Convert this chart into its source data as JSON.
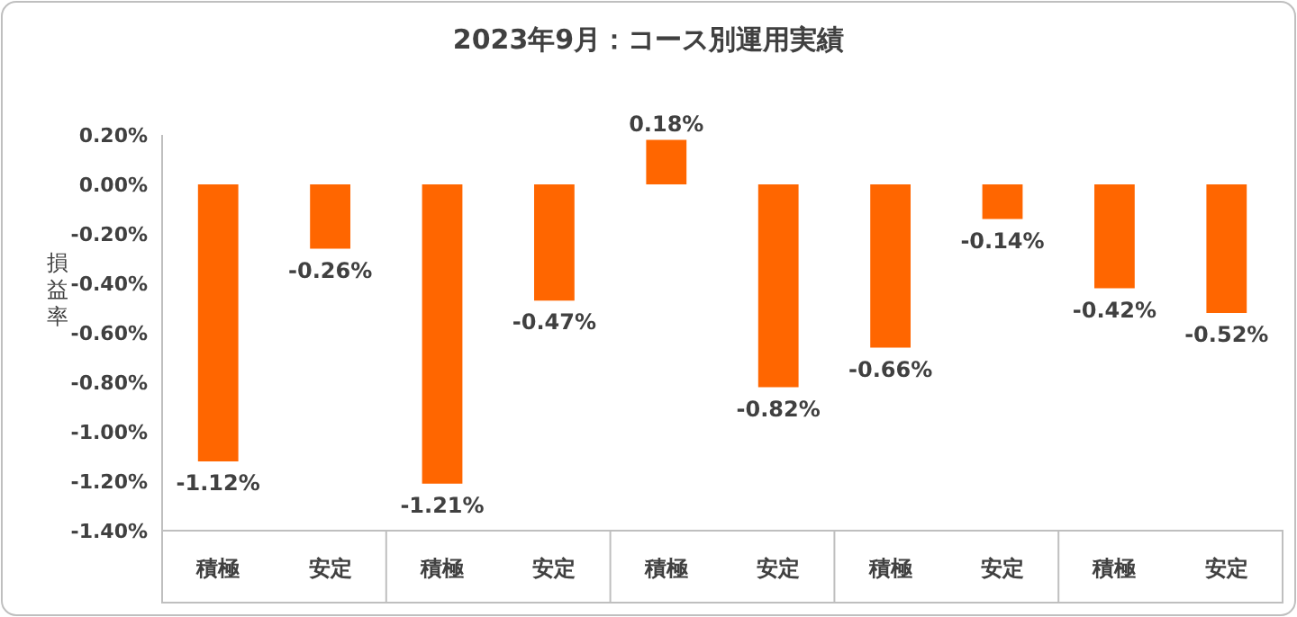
{
  "chart_data": {
    "type": "bar",
    "title": "2023年9月：コース別運用実績",
    "ylabel": "損益率",
    "categories": [
      "積極",
      "安定",
      "積極",
      "安定",
      "積極",
      "安定",
      "積極",
      "安定",
      "積極",
      "安定"
    ],
    "values": [
      -1.12,
      -0.26,
      -1.21,
      -0.47,
      0.18,
      -0.82,
      -0.66,
      -0.14,
      -0.42,
      -0.52
    ],
    "value_labels": [
      "-1.12%",
      "-0.26%",
      "-1.21%",
      "-0.47%",
      "0.18%",
      "-0.82%",
      "-0.66%",
      "-0.14%",
      "-0.42%",
      "-0.52%"
    ],
    "color": "#ff6600",
    "ylim": [
      -1.4,
      0.2
    ],
    "yticks": [
      {
        "value": 0.2,
        "label": "0.20%"
      },
      {
        "value": 0,
        "label": "0.00%"
      },
      {
        "value": -0.2,
        "label": "-0.20%"
      },
      {
        "value": -0.4,
        "label": "-0.40%"
      },
      {
        "value": -0.6,
        "label": "-0.60%"
      },
      {
        "value": -0.8,
        "label": "-0.80%"
      },
      {
        "value": -1.0,
        "label": "-1.00%"
      },
      {
        "value": -1.2,
        "label": "-1.20%"
      },
      {
        "value": -1.4,
        "label": "-1.40%"
      }
    ],
    "grid": false
  }
}
